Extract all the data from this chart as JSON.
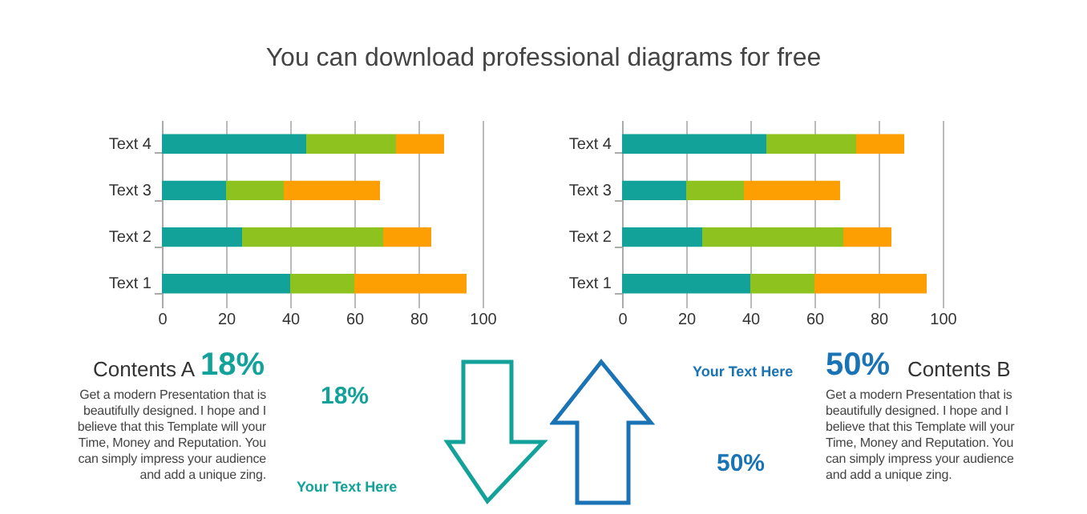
{
  "chart_data": [
    {
      "type": "bar",
      "subtitle": "You can download professional diagrams for free",
      "orientation": "horizontal",
      "stacked": true,
      "categories": [
        "Text 4",
        "Text 3",
        "Text 2",
        "Text 1"
      ],
      "series": [
        {
          "color": "#12a29a",
          "values": [
            45,
            20,
            25,
            40
          ]
        },
        {
          "color": "#8dc21f",
          "values": [
            28,
            18,
            44,
            20
          ]
        },
        {
          "color": "#fd9f03",
          "values": [
            15,
            30,
            15,
            35
          ]
        }
      ],
      "xlim": [
        0,
        100
      ],
      "xticks": [
        0,
        20,
        40,
        60,
        80,
        100
      ],
      "grid": "x",
      "legend": false
    },
    {
      "type": "bar",
      "orientation": "horizontal",
      "stacked": true,
      "categories": [
        "Text 4",
        "Text 3",
        "Text 2",
        "Text 1"
      ],
      "series": [
        {
          "color": "#12a29a",
          "values": [
            45,
            20,
            25,
            40
          ]
        },
        {
          "color": "#8dc21f",
          "values": [
            28,
            18,
            44,
            20
          ]
        },
        {
          "color": "#fd9f03",
          "values": [
            15,
            30,
            15,
            35
          ]
        }
      ],
      "xlim": [
        0,
        100
      ],
      "xticks": [
        0,
        20,
        40,
        60,
        80,
        100
      ],
      "grid": "x",
      "legend": false
    },
    {
      "type": "other",
      "title": "Contents A",
      "annotations": [
        "18%",
        "Get a modern Presentation that is beautifully designed. I hope and I believe that this Template will your Time, Money and Reputation. You can simply impress your audience and add a unique zing.",
        "18%",
        "Your Text Here"
      ]
    },
    {
      "type": "other",
      "title": "Contents B",
      "annotations": [
        "50%",
        "Get a modern Presentation that is beautifully designed. I hope and I believe that this Template will your Time, Money and Reputation. You can simply impress your audience and add a unique zing.",
        "50%",
        "Your Text Here"
      ]
    }
  ]
}
